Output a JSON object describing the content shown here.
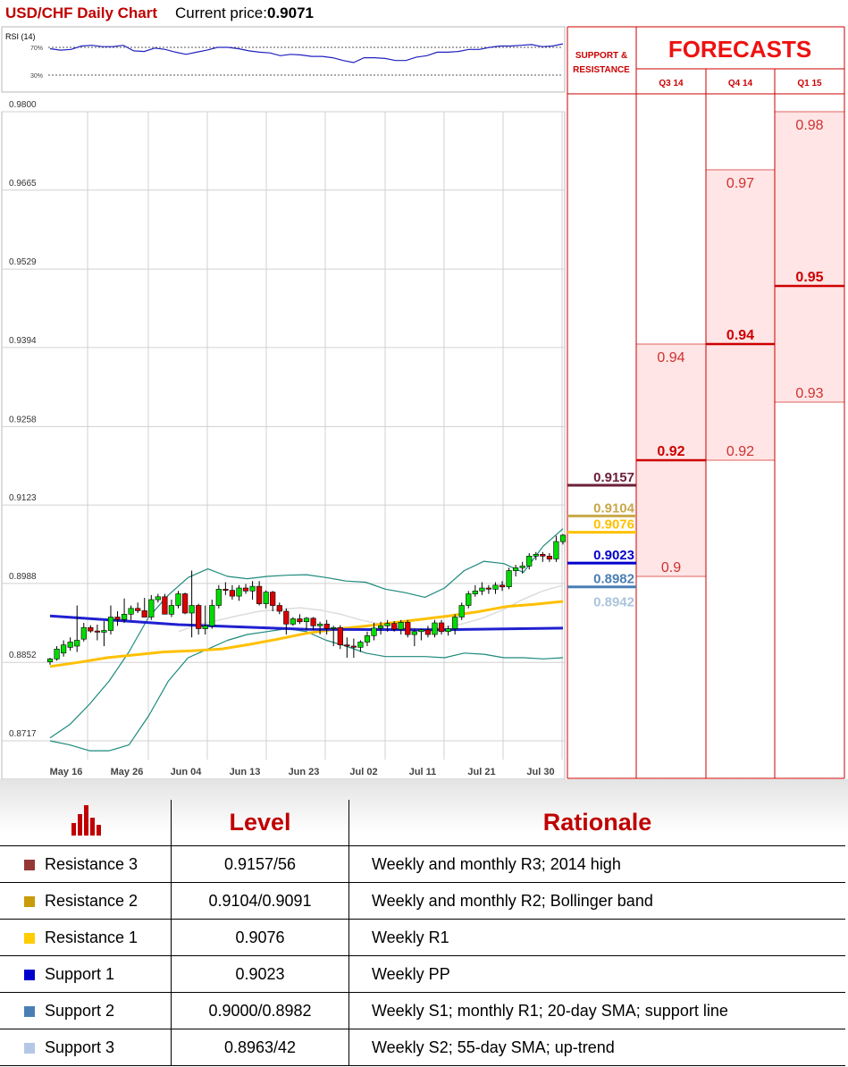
{
  "header": {
    "title": "USD/CHF Daily Chart",
    "price_label": "Current price:",
    "price_value": "0.9071"
  },
  "rsi": {
    "label": "RSI (14)",
    "levels": [
      "70%",
      "30%"
    ],
    "values": [
      68,
      66,
      67,
      72,
      73,
      71,
      71,
      73,
      65,
      64,
      69,
      67,
      63,
      60,
      63,
      66,
      70,
      70,
      68,
      65,
      63,
      62,
      58,
      60,
      59,
      57,
      57,
      55,
      51,
      48,
      55,
      55,
      54,
      51,
      51,
      56,
      58,
      63,
      63,
      64,
      67,
      67,
      70,
      72,
      72,
      73,
      74,
      71,
      72,
      75
    ]
  },
  "chart_data": {
    "type": "candlestick",
    "title": "USD/CHF Daily Chart",
    "y_ticks": [
      "0.9800",
      "0.9665",
      "0.9529",
      "0.9394",
      "0.9258",
      "0.9123",
      "0.8988",
      "0.8852",
      "0.8717"
    ],
    "ylim": [
      0.8717,
      0.98
    ],
    "x_ticks": [
      "May 16",
      "May 26",
      "Jun 04",
      "Jun 13",
      "Jun 23",
      "Jul 02",
      "Jul 11",
      "Jul 21",
      "Jul 30"
    ],
    "candles": [
      {
        "o": 0.8853,
        "h": 0.886,
        "l": 0.8848,
        "c": 0.8858
      },
      {
        "o": 0.8858,
        "h": 0.888,
        "l": 0.8855,
        "c": 0.8875
      },
      {
        "o": 0.8868,
        "h": 0.889,
        "l": 0.8862,
        "c": 0.8882
      },
      {
        "o": 0.8878,
        "h": 0.8895,
        "l": 0.8872,
        "c": 0.8887
      },
      {
        "o": 0.888,
        "h": 0.895,
        "l": 0.887,
        "c": 0.889
      },
      {
        "o": 0.8892,
        "h": 0.892,
        "l": 0.8888,
        "c": 0.8912
      },
      {
        "o": 0.8912,
        "h": 0.8916,
        "l": 0.8903,
        "c": 0.8906
      },
      {
        "o": 0.8906,
        "h": 0.8917,
        "l": 0.889,
        "c": 0.8904
      },
      {
        "o": 0.8904,
        "h": 0.8923,
        "l": 0.888,
        "c": 0.8907
      },
      {
        "o": 0.8907,
        "h": 0.895,
        "l": 0.89,
        "c": 0.893
      },
      {
        "o": 0.893,
        "h": 0.894,
        "l": 0.8915,
        "c": 0.8926
      },
      {
        "o": 0.8926,
        "h": 0.8962,
        "l": 0.892,
        "c": 0.8935
      },
      {
        "o": 0.8935,
        "h": 0.895,
        "l": 0.8925,
        "c": 0.8945
      },
      {
        "o": 0.8945,
        "h": 0.8955,
        "l": 0.8937,
        "c": 0.8941
      },
      {
        "o": 0.8941,
        "h": 0.8963,
        "l": 0.893,
        "c": 0.893
      },
      {
        "o": 0.893,
        "h": 0.8968,
        "l": 0.8925,
        "c": 0.896
      },
      {
        "o": 0.896,
        "h": 0.897,
        "l": 0.8955,
        "c": 0.8965
      },
      {
        "o": 0.8965,
        "h": 0.897,
        "l": 0.8935,
        "c": 0.8935
      },
      {
        "o": 0.8935,
        "h": 0.896,
        "l": 0.893,
        "c": 0.895
      },
      {
        "o": 0.895,
        "h": 0.8975,
        "l": 0.8945,
        "c": 0.897
      },
      {
        "o": 0.897,
        "h": 0.8972,
        "l": 0.8935,
        "c": 0.8937
      },
      {
        "o": 0.8937,
        "h": 0.901,
        "l": 0.8895,
        "c": 0.895
      },
      {
        "o": 0.895,
        "h": 0.8953,
        "l": 0.89,
        "c": 0.891
      },
      {
        "o": 0.891,
        "h": 0.895,
        "l": 0.89,
        "c": 0.8915
      },
      {
        "o": 0.8915,
        "h": 0.896,
        "l": 0.891,
        "c": 0.895
      },
      {
        "o": 0.895,
        "h": 0.8985,
        "l": 0.8945,
        "c": 0.8978
      },
      {
        "o": 0.8978,
        "h": 0.899,
        "l": 0.8968,
        "c": 0.8976
      },
      {
        "o": 0.8976,
        "h": 0.8985,
        "l": 0.896,
        "c": 0.8966
      },
      {
        "o": 0.8966,
        "h": 0.8985,
        "l": 0.8958,
        "c": 0.898
      },
      {
        "o": 0.898,
        "h": 0.8987,
        "l": 0.897,
        "c": 0.8975
      },
      {
        "o": 0.8975,
        "h": 0.8992,
        "l": 0.896,
        "c": 0.8983
      },
      {
        "o": 0.8983,
        "h": 0.8992,
        "l": 0.895,
        "c": 0.8953
      },
      {
        "o": 0.8953,
        "h": 0.8976,
        "l": 0.8945,
        "c": 0.8973
      },
      {
        "o": 0.8973,
        "h": 0.8975,
        "l": 0.894,
        "c": 0.895
      },
      {
        "o": 0.895,
        "h": 0.8955,
        "l": 0.8935,
        "c": 0.894
      },
      {
        "o": 0.894,
        "h": 0.8945,
        "l": 0.89,
        "c": 0.8918
      },
      {
        "o": 0.8918,
        "h": 0.893,
        "l": 0.8915,
        "c": 0.8927
      },
      {
        "o": 0.8927,
        "h": 0.8935,
        "l": 0.8918,
        "c": 0.8922
      },
      {
        "o": 0.8922,
        "h": 0.893,
        "l": 0.8908,
        "c": 0.8928
      },
      {
        "o": 0.8928,
        "h": 0.893,
        "l": 0.8908,
        "c": 0.8915
      },
      {
        "o": 0.8915,
        "h": 0.8922,
        "l": 0.89,
        "c": 0.8918
      },
      {
        "o": 0.8918,
        "h": 0.8925,
        "l": 0.89,
        "c": 0.891
      },
      {
        "o": 0.891,
        "h": 0.8915,
        "l": 0.888,
        "c": 0.8912
      },
      {
        "o": 0.8912,
        "h": 0.8916,
        "l": 0.8875,
        "c": 0.8882
      },
      {
        "o": 0.8882,
        "h": 0.8895,
        "l": 0.886,
        "c": 0.888
      },
      {
        "o": 0.888,
        "h": 0.8893,
        "l": 0.886,
        "c": 0.8878
      },
      {
        "o": 0.8878,
        "h": 0.889,
        "l": 0.887,
        "c": 0.8887
      },
      {
        "o": 0.8887,
        "h": 0.8905,
        "l": 0.888,
        "c": 0.8898
      },
      {
        "o": 0.8898,
        "h": 0.892,
        "l": 0.889,
        "c": 0.8911
      },
      {
        "o": 0.8911,
        "h": 0.8922,
        "l": 0.89,
        "c": 0.8915
      },
      {
        "o": 0.8915,
        "h": 0.8925,
        "l": 0.8905,
        "c": 0.8919
      },
      {
        "o": 0.8919,
        "h": 0.8923,
        "l": 0.8905,
        "c": 0.8909
      },
      {
        "o": 0.8909,
        "h": 0.8925,
        "l": 0.89,
        "c": 0.8921
      },
      {
        "o": 0.8921,
        "h": 0.8925,
        "l": 0.8895,
        "c": 0.89
      },
      {
        "o": 0.89,
        "h": 0.891,
        "l": 0.888,
        "c": 0.8905
      },
      {
        "o": 0.8905,
        "h": 0.891,
        "l": 0.889,
        "c": 0.8908
      },
      {
        "o": 0.8908,
        "h": 0.8915,
        "l": 0.8895,
        "c": 0.89
      },
      {
        "o": 0.89,
        "h": 0.8925,
        "l": 0.8895,
        "c": 0.892
      },
      {
        "o": 0.892,
        "h": 0.8925,
        "l": 0.89,
        "c": 0.8905
      },
      {
        "o": 0.8905,
        "h": 0.8915,
        "l": 0.8898,
        "c": 0.891
      },
      {
        "o": 0.891,
        "h": 0.8935,
        "l": 0.89,
        "c": 0.893
      },
      {
        "o": 0.893,
        "h": 0.8955,
        "l": 0.8925,
        "c": 0.895
      },
      {
        "o": 0.895,
        "h": 0.8975,
        "l": 0.8945,
        "c": 0.897
      },
      {
        "o": 0.897,
        "h": 0.8985,
        "l": 0.8965,
        "c": 0.8975
      },
      {
        "o": 0.8975,
        "h": 0.899,
        "l": 0.8968,
        "c": 0.898
      },
      {
        "o": 0.898,
        "h": 0.8985,
        "l": 0.897,
        "c": 0.8978
      },
      {
        "o": 0.8978,
        "h": 0.899,
        "l": 0.897,
        "c": 0.8985
      },
      {
        "o": 0.8985,
        "h": 0.8992,
        "l": 0.8975,
        "c": 0.8982
      },
      {
        "o": 0.8982,
        "h": 0.9015,
        "l": 0.8978,
        "c": 0.901
      },
      {
        "o": 0.901,
        "h": 0.902,
        "l": 0.9,
        "c": 0.9015
      },
      {
        "o": 0.9015,
        "h": 0.9025,
        "l": 0.9005,
        "c": 0.9018
      },
      {
        "o": 0.9018,
        "h": 0.904,
        "l": 0.9012,
        "c": 0.9035
      },
      {
        "o": 0.9035,
        "h": 0.9042,
        "l": 0.9028,
        "c": 0.9038
      },
      {
        "o": 0.9038,
        "h": 0.9042,
        "l": 0.9025,
        "c": 0.9035
      },
      {
        "o": 0.9035,
        "h": 0.904,
        "l": 0.9025,
        "c": 0.903
      },
      {
        "o": 0.903,
        "h": 0.907,
        "l": 0.9025,
        "c": 0.906
      },
      {
        "o": 0.906,
        "h": 0.9073,
        "l": 0.9055,
        "c": 0.9071
      }
    ],
    "bb_upper": [
      0.8722,
      0.8745,
      0.878,
      0.882,
      0.887,
      0.893,
      0.8968,
      0.8998,
      0.9013,
      0.9,
      0.8996,
      0.9,
      0.9002,
      0.9003,
      0.8998,
      0.8992,
      0.899,
      0.8978,
      0.8972,
      0.8964,
      0.898,
      0.901,
      0.9026,
      0.9022,
      0.9007,
      0.9052,
      0.9082
    ],
    "bb_lower": [
      0.8717,
      0.871,
      0.87,
      0.87,
      0.871,
      0.876,
      0.882,
      0.886,
      0.8875,
      0.889,
      0.89,
      0.8905,
      0.891,
      0.8905,
      0.889,
      0.888,
      0.8868,
      0.8862,
      0.8862,
      0.8862,
      0.886,
      0.8868,
      0.8866,
      0.886,
      0.886,
      0.8858,
      0.886
    ],
    "sma20": [
      0.8905,
      0.8918,
      0.8925,
      0.8933,
      0.894,
      0.8943,
      0.8946,
      0.8942,
      0.8935,
      0.8925,
      0.8918,
      0.8912,
      0.891,
      0.8912,
      0.8918,
      0.8928,
      0.8942,
      0.896,
      0.8975,
      0.8985
    ],
    "sma55": [
      0.8845,
      0.8852,
      0.886,
      0.8865,
      0.887,
      0.8872,
      0.8875,
      0.8883,
      0.8892,
      0.8902,
      0.8909,
      0.8914,
      0.892,
      0.8926,
      0.8932,
      0.8939,
      0.8948,
      0.8952,
      0.8957
    ],
    "support_line": [
      0.8932,
      0.8917,
      0.8909,
      0.8908,
      0.8911
    ]
  },
  "levels_axis": {
    "header_lines": [
      "SUPPORT &",
      "RESISTANCE"
    ],
    "items": [
      {
        "value": 0.9157,
        "label": "0.9157",
        "color": "#6b1f3a",
        "line": true
      },
      {
        "value": 0.9104,
        "label": "0.9104",
        "color": "#c8a84a",
        "line": true
      },
      {
        "value": 0.9076,
        "label": "0.9076",
        "color": "#ffc000",
        "line": true
      },
      {
        "value": 0.9023,
        "label": "0.9023",
        "color": "#0000cc",
        "line": true
      },
      {
        "value": 0.8982,
        "label": "0.8982",
        "color": "#4a7fb5",
        "line": true
      },
      {
        "value": 0.8942,
        "label": "0.8942",
        "color": "#aac4dc",
        "line": false
      }
    ]
  },
  "forecasts": {
    "title": "FORECASTS",
    "columns": [
      {
        "label": "Q3 14",
        "low": 0.9,
        "high": 0.94,
        "mid": 0.92,
        "low_label": "0.9",
        "high_label": "0.94",
        "mid_label": "0.92"
      },
      {
        "label": "Q4 14",
        "low": 0.92,
        "high": 0.97,
        "mid": 0.94,
        "low_label": "0.92",
        "high_label": "0.97",
        "mid_label": "0.94"
      },
      {
        "label": "Q1 15",
        "low": 0.93,
        "high": 0.98,
        "mid": 0.95,
        "low_label": "0.93",
        "high_label": "0.98",
        "mid_label": "0.95"
      }
    ]
  },
  "table": {
    "headers": {
      "level": "Level",
      "rationale": "Rationale"
    },
    "header_icon": "bar-chart-icon",
    "rows": [
      {
        "name": "Resistance 3",
        "level": "0.9157/56",
        "rationale": "Weekly and monthly R3; 2014 high",
        "color": "#953735"
      },
      {
        "name": "Resistance 2",
        "level": "0.9104/0.9091",
        "rationale": "Weekly and monthly R2; Bollinger band",
        "color": "#c89b0a"
      },
      {
        "name": "Resistance 1",
        "level": "0.9076",
        "rationale": "Weekly R1",
        "color": "#ffcc00"
      },
      {
        "name": "Support 1",
        "level": "0.9023",
        "rationale": "Weekly PP",
        "color": "#0000cc"
      },
      {
        "name": "Support 2",
        "level": "0.9000/0.8982",
        "rationale": "Weekly S1; monthly R1; 20-day SMA; support line",
        "color": "#4a7fb5"
      },
      {
        "name": "Support 3",
        "level": "0.8963/42",
        "rationale": "Weekly S2; 55-day SMA; up-trend",
        "color": "#b4c8e6"
      }
    ]
  }
}
